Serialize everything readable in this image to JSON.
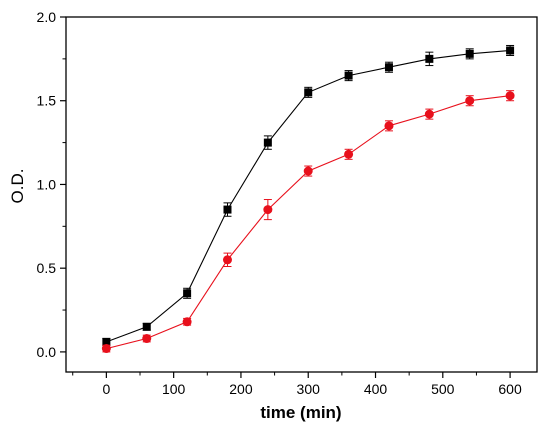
{
  "chart_data": {
    "type": "line",
    "title": "",
    "xlabel": "time (min)",
    "ylabel": "O.D.",
    "xlim": [
      -60,
      640
    ],
    "ylim": [
      -0.12,
      2.0
    ],
    "xticks": [
      0,
      100,
      200,
      300,
      400,
      500,
      600
    ],
    "yticks": [
      0.0,
      0.5,
      1.0,
      1.5,
      2.0
    ],
    "xtick_labels": [
      "0",
      "100",
      "200",
      "300",
      "400",
      "500",
      "600"
    ],
    "ytick_labels": [
      "0.0",
      "0.5",
      "1.0",
      "1.5",
      "2.0"
    ],
    "grid": false,
    "legend": "none",
    "x": [
      0,
      60,
      120,
      180,
      240,
      300,
      360,
      420,
      480,
      540,
      600
    ],
    "series": [
      {
        "color": "#000000",
        "marker": "square",
        "values": [
          0.06,
          0.15,
          0.35,
          0.85,
          1.25,
          1.55,
          1.65,
          1.7,
          1.75,
          1.78,
          1.8
        ],
        "errors": [
          0.02,
          0.02,
          0.03,
          0.04,
          0.04,
          0.03,
          0.03,
          0.03,
          0.04,
          0.03,
          0.03
        ]
      },
      {
        "color": "#e8101c",
        "marker": "circle",
        "values": [
          0.02,
          0.08,
          0.18,
          0.55,
          0.85,
          1.08,
          1.18,
          1.35,
          1.42,
          1.5,
          1.53
        ],
        "errors": [
          0.02,
          0.02,
          0.02,
          0.04,
          0.06,
          0.03,
          0.03,
          0.03,
          0.03,
          0.03,
          0.03
        ]
      }
    ]
  }
}
